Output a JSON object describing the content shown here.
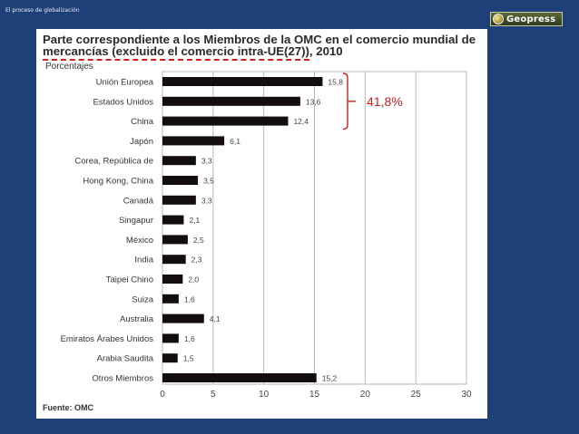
{
  "slide": {
    "caption": "El proceso de globalización",
    "logo_text": "Geopress"
  },
  "chart_data": {
    "type": "bar",
    "orientation": "horizontal",
    "title_part1": "Parte correspondiente a los Miembros de la OMC en el comercio mundial de ",
    "title_part2": "mercancías (excluido el comercio intra-UE(27))",
    "title_part3": ", 2010",
    "units_label": "Porcentajes",
    "source": "Fuente: OMC",
    "categories": [
      "Unión Europea",
      "Estados Unidos",
      "China",
      "Japón",
      "Corea, República de",
      "Hong Kong, China",
      "Canadá",
      "Singapur",
      "México",
      "India",
      "Taipei Chino",
      "Suiza",
      "Australia",
      "Emiratos Árabes Unidos",
      "Arabia Saudita",
      "Otros Miembros"
    ],
    "values": [
      15.8,
      13.6,
      12.4,
      6.1,
      3.3,
      3.5,
      3.3,
      2.1,
      2.5,
      2.3,
      2.0,
      1.6,
      4.1,
      1.6,
      1.5,
      15.2
    ],
    "value_labels": [
      "15,8",
      "13,6",
      "12,4",
      "6,1",
      "3,3",
      "3,5",
      "3,3",
      "2,1",
      "2,5",
      "2,3",
      "2,0",
      "1,6",
      "4,1",
      "1,6",
      "1,5",
      "15,2"
    ],
    "xlim": [
      0,
      30
    ],
    "xticks": [
      0,
      5,
      10,
      15,
      20,
      25,
      30
    ],
    "grid": true,
    "bar_color": "#140d0d",
    "annotation": {
      "text": "41,8%",
      "color": "#d21d1d",
      "brackets_categories": [
        "Unión Europea",
        "Estados Unidos",
        "China"
      ]
    }
  },
  "colors": {
    "slide_background": "#1f3f78",
    "card_background": "#ffffff",
    "gridline": "#b8b8b8",
    "accent_red": "#d21d1d"
  }
}
